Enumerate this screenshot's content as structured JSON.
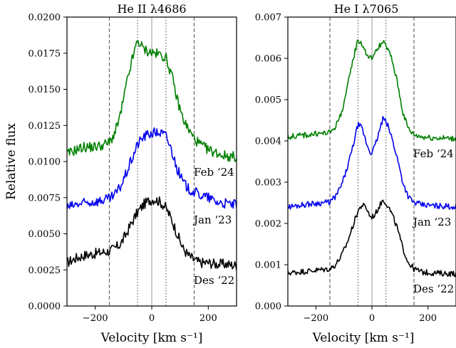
{
  "chart_data": [
    {
      "type": "line",
      "title": "He II λ4686",
      "xlabel": "Velocity [km s⁻¹]",
      "ylabel": "Relative flux",
      "xlim": [
        -300,
        300
      ],
      "ylim": [
        0,
        0.02
      ],
      "xticks": [
        -200,
        0,
        200
      ],
      "xtick_labels": [
        "−200",
        "0",
        "200"
      ],
      "yticks": [
        0,
        0.0025,
        0.005,
        0.0075,
        0.01,
        0.0125,
        0.015,
        0.0175,
        0.02
      ],
      "ytick_labels": [
        "0.0000",
        "0.0025",
        "0.0050",
        "0.0075",
        "0.0100",
        "0.0125",
        "0.0150",
        "0.0175",
        "0.0200"
      ],
      "reference_lines": {
        "solid_gray": [
          0
        ],
        "dotted": [
          -50,
          50
        ],
        "dashed": [
          -150,
          150
        ]
      },
      "series": [
        {
          "name": "Des ‘22",
          "color": "#000000",
          "x": [
            -300,
            -270,
            -240,
            -210,
            -180,
            -150,
            -130,
            -110,
            -90,
            -70,
            -50,
            -30,
            -10,
            10,
            30,
            50,
            70,
            90,
            110,
            130,
            150,
            170,
            200,
            230,
            260,
            300
          ],
          "y": [
            0.003,
            0.0033,
            0.0035,
            0.0036,
            0.0037,
            0.0038,
            0.004,
            0.0043,
            0.005,
            0.0058,
            0.0065,
            0.007,
            0.0073,
            0.0074,
            0.0072,
            0.0068,
            0.006,
            0.005,
            0.004,
            0.0035,
            0.0032,
            0.003,
            0.003,
            0.0029,
            0.0029,
            0.0028
          ]
        },
        {
          "name": "Jan ‘23",
          "color": "#0000ee",
          "x": [
            -300,
            -270,
            -240,
            -210,
            -180,
            -150,
            -130,
            -110,
            -90,
            -70,
            -50,
            -30,
            -10,
            10,
            30,
            50,
            70,
            90,
            110,
            130,
            150,
            170,
            200,
            230,
            260,
            300
          ],
          "y": [
            0.0068,
            0.007,
            0.0071,
            0.0072,
            0.0073,
            0.0074,
            0.0077,
            0.0083,
            0.0092,
            0.0102,
            0.0112,
            0.0117,
            0.0119,
            0.012,
            0.012,
            0.0118,
            0.0108,
            0.0095,
            0.0086,
            0.0081,
            0.0079,
            0.0077,
            0.0075,
            0.0072,
            0.0071,
            0.007
          ]
        },
        {
          "name": "Feb ‘24",
          "color": "#008000",
          "x": [
            -300,
            -270,
            -240,
            -210,
            -180,
            -150,
            -130,
            -110,
            -90,
            -70,
            -50,
            -30,
            -10,
            10,
            30,
            50,
            70,
            90,
            110,
            130,
            150,
            170,
            200,
            230,
            260,
            300
          ],
          "y": [
            0.0105,
            0.0108,
            0.011,
            0.011,
            0.0111,
            0.0113,
            0.012,
            0.0133,
            0.0153,
            0.017,
            0.0184,
            0.0178,
            0.0176,
            0.0175,
            0.0174,
            0.0172,
            0.016,
            0.0143,
            0.013,
            0.0122,
            0.0116,
            0.0112,
            0.0108,
            0.0106,
            0.0104,
            0.0103
          ]
        }
      ]
    },
    {
      "type": "line",
      "title": "He I λ7065",
      "xlabel": "Velocity [km s⁻¹]",
      "ylabel": "",
      "xlim": [
        -300,
        300
      ],
      "ylim": [
        0,
        0.007
      ],
      "xticks": [
        -200,
        0,
        200
      ],
      "xtick_labels": [
        "−200",
        "0",
        "200"
      ],
      "yticks": [
        0,
        0.001,
        0.002,
        0.003,
        0.004,
        0.005,
        0.006,
        0.007
      ],
      "ytick_labels": [
        "0.000",
        "0.001",
        "0.002",
        "0.003",
        "0.004",
        "0.005",
        "0.006",
        "0.007"
      ],
      "reference_lines": {
        "solid_gray": [
          0
        ],
        "dotted": [
          -50,
          50
        ],
        "dashed": [
          -150,
          150
        ]
      },
      "series": [
        {
          "name": "Des ‘22",
          "color": "#000000",
          "x": [
            -300,
            -270,
            -240,
            -210,
            -180,
            -150,
            -130,
            -110,
            -90,
            -70,
            -50,
            -35,
            -20,
            -5,
            10,
            25,
            40,
            55,
            70,
            90,
            110,
            130,
            150,
            180,
            220,
            260,
            300
          ],
          "y": [
            0.0008,
            0.00082,
            0.00084,
            0.00086,
            0.00088,
            0.0009,
            0.001,
            0.0012,
            0.0015,
            0.0019,
            0.0023,
            0.00245,
            0.00238,
            0.00215,
            0.0022,
            0.0024,
            0.00258,
            0.00245,
            0.00225,
            0.0019,
            0.0014,
            0.00105,
            0.0009,
            0.00082,
            0.0008,
            0.00079,
            0.00078
          ]
        },
        {
          "name": "Jan ‘23",
          "color": "#0000ee",
          "x": [
            -300,
            -270,
            -240,
            -210,
            -180,
            -150,
            -130,
            -110,
            -90,
            -70,
            -50,
            -35,
            -20,
            -5,
            10,
            25,
            40,
            55,
            70,
            90,
            110,
            130,
            150,
            180,
            220,
            260,
            300
          ],
          "y": [
            0.0024,
            0.00243,
            0.00246,
            0.00248,
            0.0025,
            0.00252,
            0.00265,
            0.0029,
            0.0033,
            0.0038,
            0.0044,
            0.0043,
            0.00395,
            0.0037,
            0.00385,
            0.0042,
            0.00455,
            0.0044,
            0.0041,
            0.0036,
            0.003,
            0.00265,
            0.0025,
            0.00245,
            0.00243,
            0.00242,
            0.0024
          ]
        },
        {
          "name": "Feb ‘24",
          "color": "#008000",
          "x": [
            -300,
            -270,
            -240,
            -210,
            -180,
            -150,
            -130,
            -110,
            -90,
            -70,
            -50,
            -35,
            -20,
            -5,
            10,
            25,
            40,
            55,
            70,
            90,
            110,
            130,
            150,
            180,
            220,
            260,
            300
          ],
          "y": [
            0.0041,
            0.00412,
            0.00414,
            0.00416,
            0.00418,
            0.0042,
            0.00435,
            0.00465,
            0.0052,
            0.0059,
            0.00645,
            0.00635,
            0.0061,
            0.006,
            0.0061,
            0.0063,
            0.00638,
            0.00625,
            0.006,
            0.00545,
            0.0047,
            0.0043,
            0.00415,
            0.0041,
            0.00408,
            0.00407,
            0.00405
          ]
        }
      ]
    }
  ]
}
